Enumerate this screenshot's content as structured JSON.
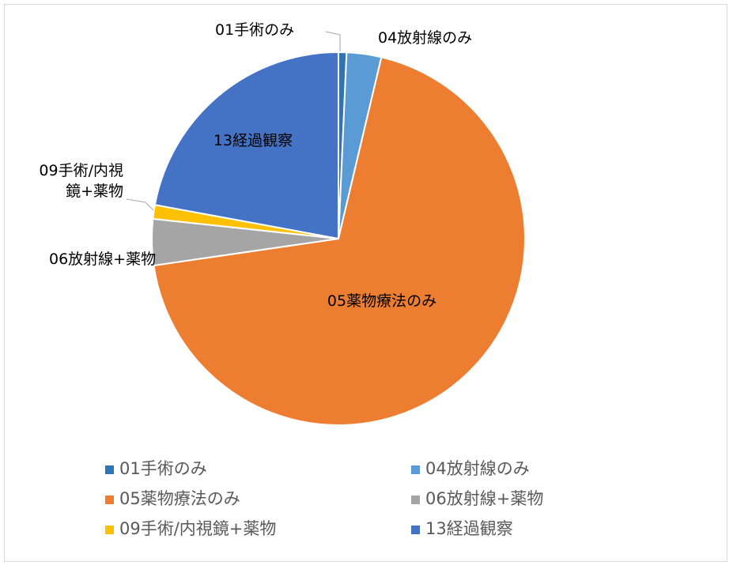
{
  "chart_data": {
    "type": "pie",
    "categories": [
      "01手術のみ",
      "04放射線のみ",
      "05薬物療法のみ",
      "06放射線+薬物",
      "09手術/内視鏡+薬物",
      "13経過観察"
    ],
    "values": [
      0.7,
      3,
      69,
      4,
      1.2,
      22.1
    ],
    "colors": [
      "#2e75b6",
      "#5b9bd5",
      "#ed7d31",
      "#a5a5a5",
      "#ffc000",
      "#4472c4"
    ],
    "legend": "bottom"
  }
}
